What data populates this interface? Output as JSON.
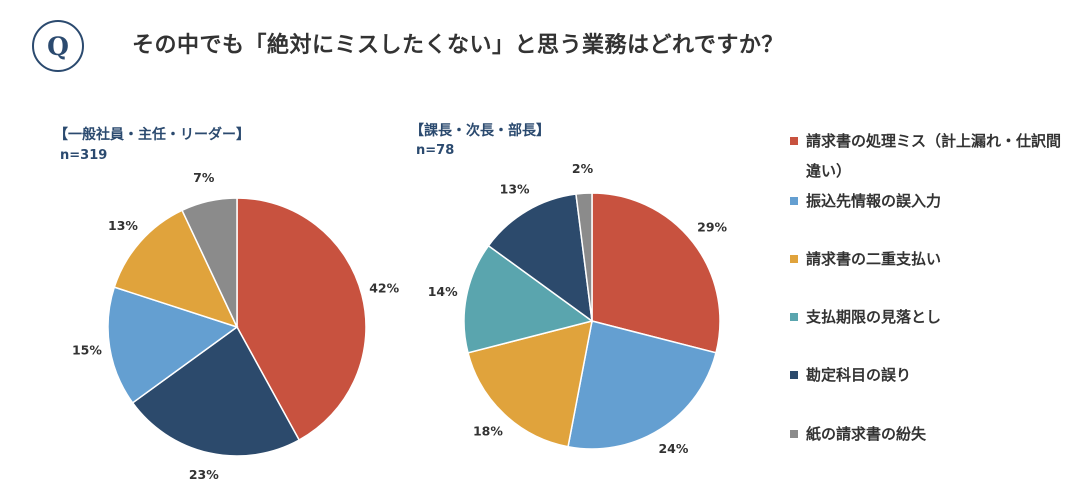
{
  "header": {
    "badge": "Q",
    "question": "その中でも「絶対にミスしたくない」と思う業務はどれですか？"
  },
  "legend": [
    {
      "label": "請求書の処理ミス（計上漏れ・仕訳間違い）",
      "color": "#c8523f"
    },
    {
      "label": "振込先情報の誤入力",
      "color": "#649fd1"
    },
    {
      "label": "請求書の二重支払い",
      "color": "#e0a33c"
    },
    {
      "label": "支払期限の見落とし",
      "color": "#5aa5ae"
    },
    {
      "label": "勘定科目の誤り",
      "color": "#2c4a6c"
    },
    {
      "label": "紙の請求書の紛失",
      "color": "#8b8b8b"
    }
  ],
  "chart_data": [
    {
      "type": "pie",
      "title": "【一般社員・主任・リーダー】",
      "subtitle": "n=319",
      "slices": [
        {
          "category": "請求書の処理ミス（計上漏れ・仕訳間違い）",
          "value": 42,
          "label": "42%",
          "color": "#c8523f"
        },
        {
          "category": "勘定科目の誤り",
          "value": 23,
          "label": "23%",
          "color": "#2c4a6c"
        },
        {
          "category": "振込先情報の誤入力",
          "value": 15,
          "label": "15%",
          "color": "#649fd1"
        },
        {
          "category": "請求書の二重支払い",
          "value": 13,
          "label": "13%",
          "color": "#e0a33c"
        },
        {
          "category": "紙の請求書の紛失",
          "value": 7,
          "label": "7%",
          "color": "#8b8b8b"
        }
      ]
    },
    {
      "type": "pie",
      "title": "【課長・次長・部長】",
      "subtitle": "n=78",
      "slices": [
        {
          "category": "請求書の処理ミス（計上漏れ・仕訳間違い）",
          "value": 29,
          "label": "29%",
          "color": "#c8523f"
        },
        {
          "category": "振込先情報の誤入力",
          "value": 24,
          "label": "24%",
          "color": "#649fd1"
        },
        {
          "category": "請求書の二重支払い",
          "value": 18,
          "label": "18%",
          "color": "#e0a33c"
        },
        {
          "category": "支払期限の見落とし",
          "value": 14,
          "label": "14%",
          "color": "#5aa5ae"
        },
        {
          "category": "勘定科目の誤り",
          "value": 13,
          "label": "13%",
          "color": "#2c4a6c"
        },
        {
          "category": "紙の請求書の紛失",
          "value": 2,
          "label": "2%",
          "color": "#8b8b8b"
        }
      ]
    }
  ]
}
